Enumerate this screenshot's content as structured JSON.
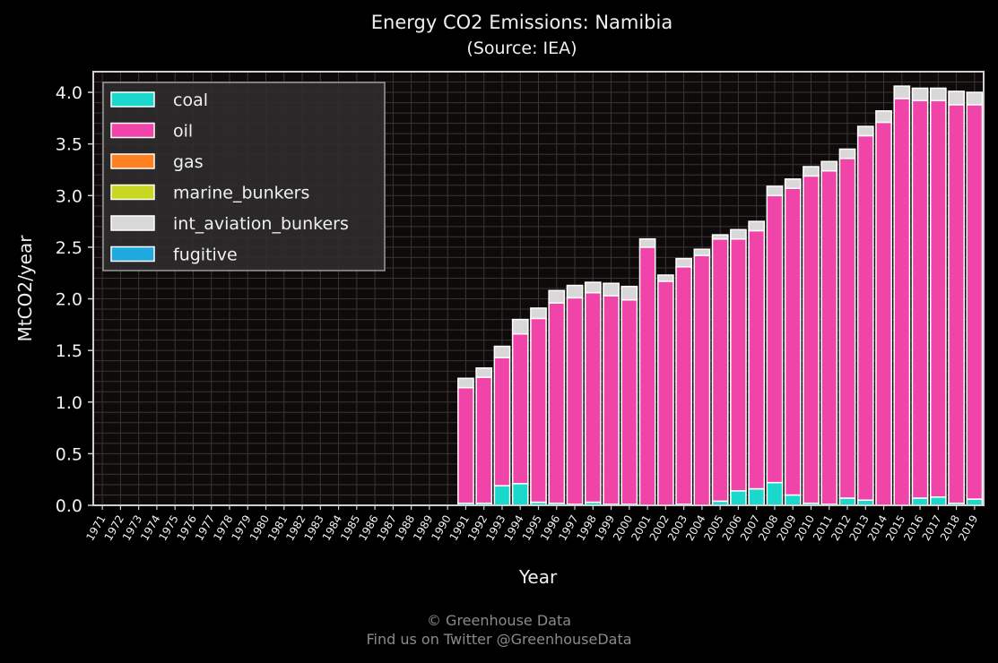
{
  "chart_data": {
    "type": "bar",
    "stacked": true,
    "title": "Energy CO2 Emissions: Namibia",
    "subtitle": "(Source: IEA)",
    "xlabel": "Year",
    "ylabel": "MtCO2/year",
    "ylim": [
      0,
      4.2
    ],
    "yticks": [
      0.0,
      0.5,
      1.0,
      1.5,
      2.0,
      2.5,
      3.0,
      3.5,
      4.0
    ],
    "grid": true,
    "legend": "top-left",
    "categories": [
      "1971",
      "1972",
      "1973",
      "1974",
      "1975",
      "1976",
      "1977",
      "1978",
      "1979",
      "1980",
      "1981",
      "1982",
      "1983",
      "1984",
      "1985",
      "1986",
      "1987",
      "1988",
      "1989",
      "1990",
      "1991",
      "1992",
      "1993",
      "1994",
      "1995",
      "1996",
      "1997",
      "1998",
      "1999",
      "2000",
      "2001",
      "2002",
      "2003",
      "2004",
      "2005",
      "2006",
      "2007",
      "2008",
      "2009",
      "2010",
      "2011",
      "2012",
      "2013",
      "2014",
      "2015",
      "2016",
      "2017",
      "2018",
      "2019"
    ],
    "series": [
      {
        "name": "coal",
        "color": "#1ad9cc",
        "values": [
          0,
          0,
          0,
          0,
          0,
          0,
          0,
          0,
          0,
          0,
          0,
          0,
          0,
          0,
          0,
          0,
          0,
          0,
          0,
          0,
          0.02,
          0.02,
          0.19,
          0.21,
          0.03,
          0.02,
          0.01,
          0.03,
          0.01,
          0.01,
          0,
          0,
          0.01,
          0,
          0.04,
          0.14,
          0.16,
          0.22,
          0.1,
          0.02,
          0.01,
          0.07,
          0.05,
          0,
          0,
          0.07,
          0.08,
          0.02,
          0.06
        ]
      },
      {
        "name": "oil",
        "color": "#f044a8",
        "values": [
          0,
          0,
          0,
          0,
          0,
          0,
          0,
          0,
          0,
          0,
          0,
          0,
          0,
          0,
          0,
          0,
          0,
          0,
          0,
          0,
          1.12,
          1.22,
          1.24,
          1.45,
          1.78,
          1.94,
          2.0,
          2.03,
          2.02,
          1.98,
          2.5,
          2.17,
          2.3,
          2.42,
          2.54,
          2.44,
          2.5,
          2.78,
          2.97,
          3.17,
          3.23,
          3.29,
          3.53,
          3.71,
          3.94,
          3.85,
          3.84,
          3.86,
          3.82
        ]
      },
      {
        "name": "gas",
        "color": "#ff8020",
        "values": [
          0,
          0,
          0,
          0,
          0,
          0,
          0,
          0,
          0,
          0,
          0,
          0,
          0,
          0,
          0,
          0,
          0,
          0,
          0,
          0,
          0,
          0,
          0,
          0,
          0,
          0,
          0,
          0,
          0,
          0,
          0,
          0,
          0,
          0,
          0,
          0,
          0,
          0,
          0,
          0,
          0,
          0,
          0,
          0,
          0,
          0,
          0,
          0,
          0
        ]
      },
      {
        "name": "marine_bunkers",
        "color": "#c8d820",
        "values": [
          0,
          0,
          0,
          0,
          0,
          0,
          0,
          0,
          0,
          0,
          0,
          0,
          0,
          0,
          0,
          0,
          0,
          0,
          0,
          0,
          0,
          0,
          0,
          0,
          0,
          0,
          0,
          0,
          0,
          0,
          0,
          0,
          0,
          0,
          0,
          0,
          0,
          0,
          0,
          0,
          0,
          0,
          0,
          0,
          0,
          0,
          0,
          0,
          0
        ]
      },
      {
        "name": "int_aviation_bunkers",
        "color": "#d8d8d8",
        "values": [
          0,
          0,
          0,
          0,
          0,
          0,
          0,
          0,
          0,
          0,
          0,
          0,
          0,
          0,
          0,
          0,
          0,
          0,
          0,
          0,
          0.09,
          0.09,
          0.11,
          0.14,
          0.1,
          0.12,
          0.12,
          0.1,
          0.12,
          0.13,
          0.08,
          0.06,
          0.08,
          0.06,
          0.04,
          0.09,
          0.09,
          0.09,
          0.09,
          0.09,
          0.09,
          0.09,
          0.09,
          0.11,
          0.12,
          0.12,
          0.12,
          0.13,
          0.12
        ]
      },
      {
        "name": "fugitive",
        "color": "#20a8e0",
        "values": [
          0,
          0,
          0,
          0,
          0,
          0,
          0,
          0,
          0,
          0,
          0,
          0,
          0,
          0,
          0,
          0,
          0,
          0,
          0,
          0,
          0,
          0,
          0,
          0,
          0,
          0,
          0,
          0,
          0,
          0,
          0,
          0,
          0,
          0,
          0,
          0,
          0,
          0,
          0,
          0,
          0,
          0,
          0,
          0,
          0,
          0,
          0,
          0,
          0
        ]
      }
    ]
  },
  "footer": {
    "line1": "© Greenhouse Data",
    "line2": "Find us on Twitter @GreenhouseData"
  }
}
